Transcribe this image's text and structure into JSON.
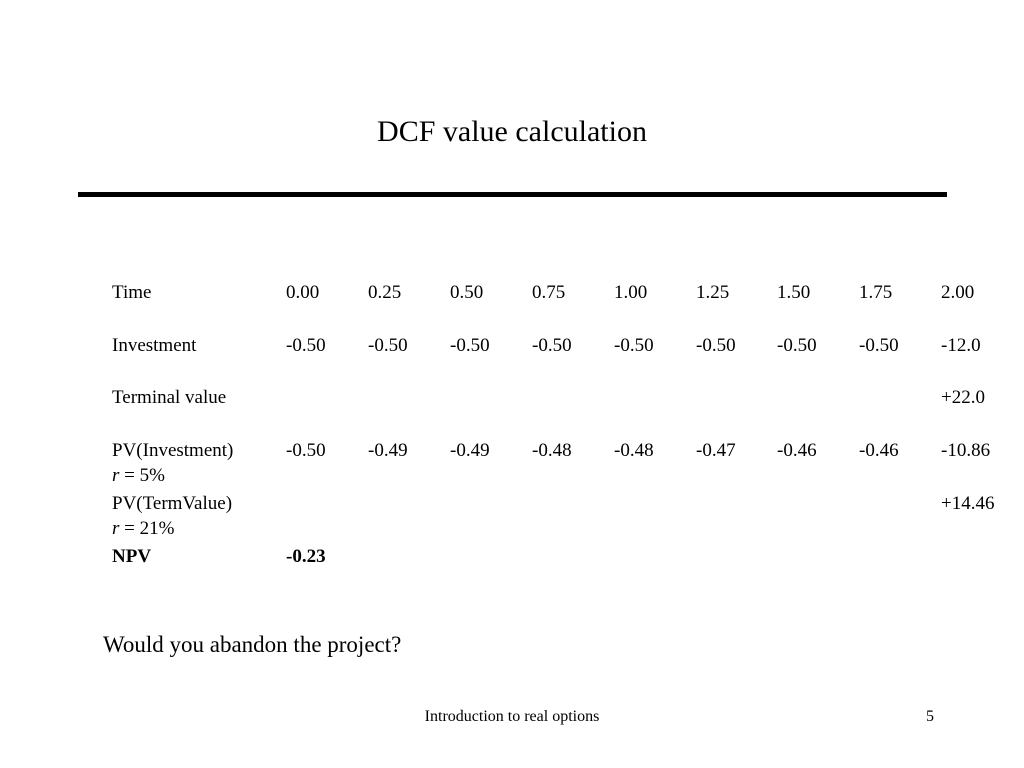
{
  "slide": {
    "title": "DCF value calculation",
    "question": "Would you abandon the project?",
    "footer": "Introduction to real options",
    "page_number": "5"
  },
  "table": {
    "time": {
      "label": "Time",
      "values": [
        "0.00",
        "0.25",
        "0.50",
        "0.75",
        "1.00",
        "1.25",
        "1.50",
        "1.75",
        "2.00"
      ]
    },
    "investment": {
      "label": "Investment",
      "values": [
        "-0.50",
        "-0.50",
        "-0.50",
        "-0.50",
        "-0.50",
        "-0.50",
        "-0.50",
        "-0.50",
        "-12.0"
      ]
    },
    "terminal_value": {
      "label": "Terminal value",
      "value": "+22.0"
    },
    "pv_investment": {
      "label": "PV(Investment)",
      "rate_var": "r",
      "rate_value": " = 5%",
      "values": [
        "-0.50",
        "-0.49",
        "-0.49",
        "-0.48",
        "-0.48",
        "-0.47",
        "-0.46",
        "-0.46",
        "-10.86"
      ]
    },
    "pv_termvalue": {
      "label": "PV(TermValue)",
      "rate_var": "r",
      "rate_value": " = 21%",
      "value": "+14.46"
    },
    "npv": {
      "label": "NPV",
      "value": "-0.23"
    }
  }
}
